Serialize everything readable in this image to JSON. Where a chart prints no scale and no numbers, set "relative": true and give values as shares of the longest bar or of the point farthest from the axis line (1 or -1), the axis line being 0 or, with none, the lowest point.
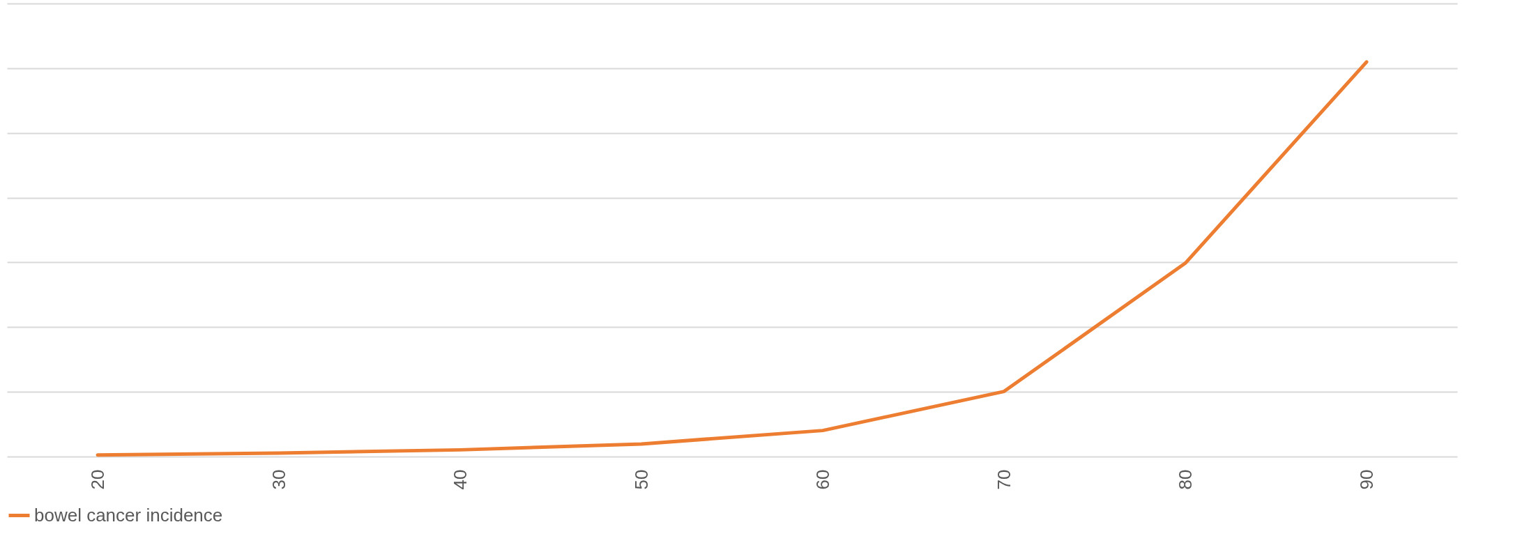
{
  "chart_data": {
    "type": "line",
    "categories": [
      "20",
      "30",
      "40",
      "50",
      "60",
      "70",
      "80",
      "90"
    ],
    "relative": true,
    "grid": "y",
    "legend": "bottom",
    "series": [
      {
        "name": "bowel cancer incidence",
        "color": "#ed7d31",
        "values": [
          0.004,
          0.009,
          0.017,
          0.032,
          0.066,
          0.165,
          0.49,
          1
        ]
      }
    ]
  }
}
